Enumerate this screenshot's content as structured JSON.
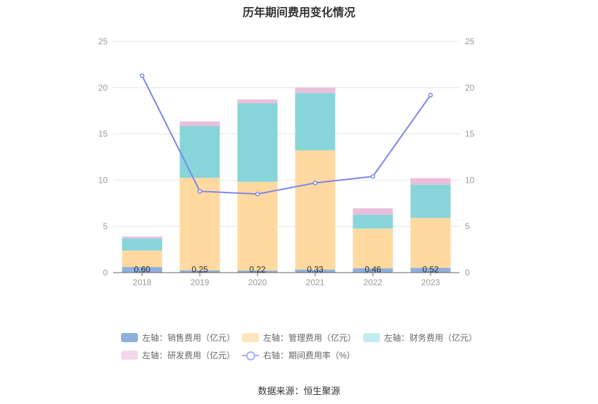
{
  "chart_data": {
    "type": "bar",
    "title": "历年期间费用变化情况",
    "categories": [
      "2018",
      "2019",
      "2020",
      "2021",
      "2022",
      "2023"
    ],
    "stacked": true,
    "left_axis": {
      "ylim": [
        0,
        25
      ],
      "ticks": [
        "0",
        "5",
        "10",
        "15",
        "20",
        "25"
      ]
    },
    "right_axis": {
      "ylim": [
        0,
        25
      ],
      "ticks": [
        "0",
        "5",
        "10",
        "15",
        "20",
        "25"
      ]
    },
    "grid": true,
    "legend_position": "bottom",
    "series": [
      {
        "name": "左轴：销售费用（亿元）",
        "type": "bar",
        "axis": "left",
        "color": "#8eb0dd",
        "values": [
          0.6,
          0.25,
          0.22,
          0.33,
          0.46,
          0.52
        ],
        "labels": [
          "0.60",
          "0.25",
          "0.22",
          "0.33",
          "0.46",
          "0.52"
        ]
      },
      {
        "name": "左轴：管理费用（亿元）",
        "type": "bar",
        "axis": "left",
        "color": "#ffd99f",
        "values": [
          1.8,
          10.0,
          9.6,
          12.9,
          4.3,
          5.4
        ]
      },
      {
        "name": "左轴：财务费用（亿元）",
        "type": "bar",
        "axis": "left",
        "color": "#87d5d9",
        "values": [
          1.3,
          5.6,
          8.5,
          6.2,
          1.5,
          3.6
        ]
      },
      {
        "name": "左轴：研发费用（亿元）",
        "type": "bar",
        "axis": "left",
        "color": "#e8bfdc",
        "values": [
          0.2,
          0.5,
          0.4,
          0.6,
          0.7,
          0.7
        ]
      },
      {
        "name": "右轴：期间费用率（%）",
        "type": "line",
        "axis": "right",
        "color": "#7c86ea",
        "values": [
          21.3,
          8.8,
          8.5,
          9.7,
          10.4,
          19.2
        ]
      }
    ]
  },
  "legend_colors": {
    "sales": "#8eb0dd",
    "admin": "#fde5c0",
    "finance": "#c3ecee",
    "rd": "#f3d8ea",
    "rate": "#a6aef0"
  },
  "source_text": "数据来源：恒生聚源"
}
